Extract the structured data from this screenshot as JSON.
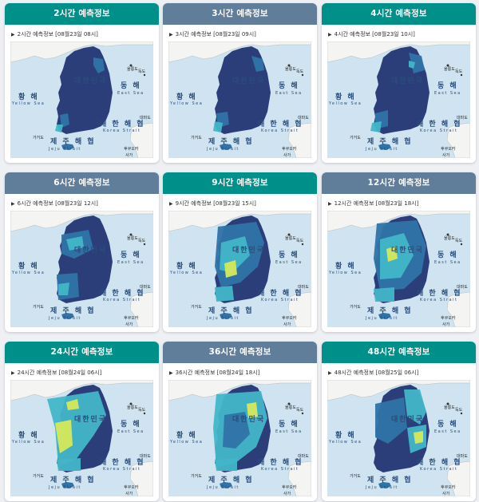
{
  "cards": [
    {
      "title": "2시간 예측정보",
      "subtitle": "2시간 예측정보 [08월23일 08시]",
      "header_color": "#00908a"
    },
    {
      "title": "3시간 예측정보",
      "subtitle": "3시간 예측정보 [08월23일 09시]",
      "header_color": "#607d99"
    },
    {
      "title": "4시간 예측정보",
      "subtitle": "4시간 예측정보 [08월23일 10시]",
      "header_color": "#00908a"
    },
    {
      "title": "6시간 예측정보",
      "subtitle": "6시간 예측정보 [08월23일 12시]",
      "header_color": "#607d99"
    },
    {
      "title": "9시간 예측정보",
      "subtitle": "9시간 예측정보 [08월23일 15시]",
      "header_color": "#00908a"
    },
    {
      "title": "12시간 예측정보",
      "subtitle": "12시간 예측정보 [08월23일 18시]",
      "header_color": "#607d99"
    },
    {
      "title": "24시간 예측정보",
      "subtitle": "24시간 예측정보 [08월24일 06시]",
      "header_color": "#00908a"
    },
    {
      "title": "36시간 예측정보",
      "subtitle": "36시간 예측정보 [08월24일 18시]",
      "header_color": "#607d99"
    },
    {
      "title": "48시간 예측정보",
      "subtitle": "48시간 예측정보 [08월25일 06시]",
      "header_color": "#00908a"
    }
  ],
  "map_labels": {
    "yellow_sea_ko": "황 해",
    "yellow_sea_en": "Yellow Sea",
    "east_sea_ko": "동 해",
    "east_sea_en": "East Sea",
    "korea_strait_ko": "대 한 해 협",
    "korea_strait_en": "Korea Strait",
    "jeju_strait_ko": "제 주 해 협",
    "jeju_strait_en": "Jeju Strait",
    "country": "대한민국",
    "ulleungdo": "울릉도",
    "dokdo": "독도",
    "gageodo": "가거도",
    "tsushima": "대마도",
    "kyushu": "후쿠오카",
    "saga": "사가"
  },
  "colors": {
    "sea": "#cfe4f0",
    "land_low": "#2b3e7a",
    "land_mid": "#2f73a8",
    "land_cyan": "#42b6c8",
    "land_yellow": "#d6e85a",
    "teal_header": "#00908a",
    "slate_header": "#607d99"
  }
}
